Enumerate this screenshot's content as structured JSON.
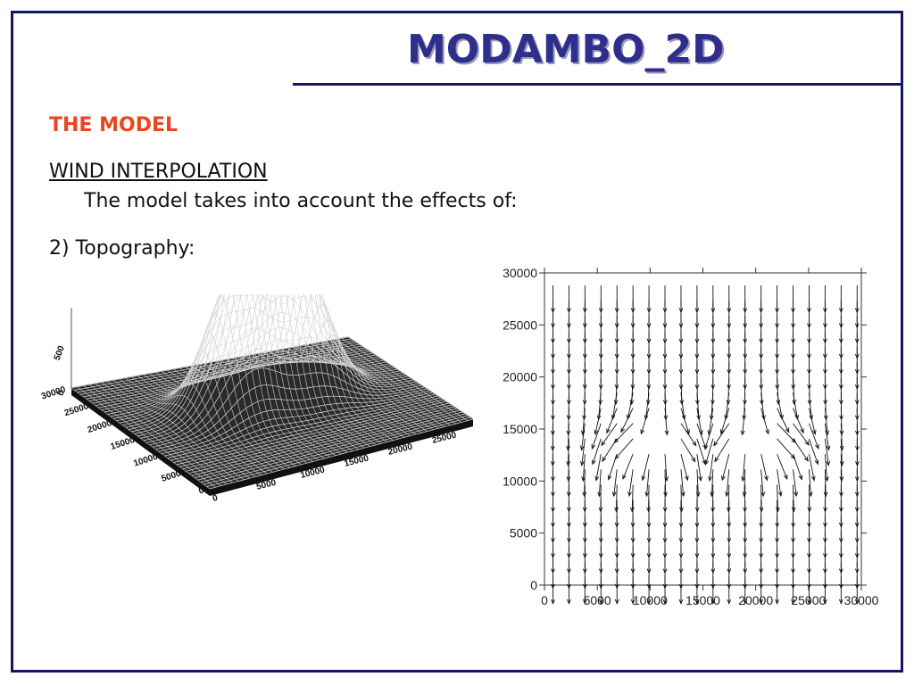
{
  "slide": {
    "title": "MODAMBO_2D",
    "section": "THE MODEL",
    "subheading": "WIND INTERPOLATION",
    "line1": "The model takes into account the effects of:",
    "line2": "2) Topography:"
  },
  "colors": {
    "frame": "#141466",
    "title": "#2e2e8c",
    "section": "#e8461e"
  },
  "chart_data": [
    {
      "type": "surface",
      "z_tick_labels": [
        "0",
        "500"
      ],
      "y_tick_labels": [
        "0",
        "5000",
        "10000",
        "15000",
        "20000",
        "25000",
        "30000"
      ],
      "x_tick_labels": [
        "0",
        "5000",
        "10000",
        "15000",
        "20000",
        "25000"
      ]
    },
    {
      "type": "vector-field",
      "xlim": [
        0,
        30000
      ],
      "ylim": [
        0,
        30000
      ],
      "x_tick_labels": [
        "0",
        "5000",
        "10000",
        "15000",
        "20000",
        "25000",
        "30000"
      ],
      "y_tick_labels": [
        "0",
        "5000",
        "10000",
        "15000",
        "20000",
        "25000",
        "30000"
      ],
      "dominant_direction": "south"
    }
  ]
}
